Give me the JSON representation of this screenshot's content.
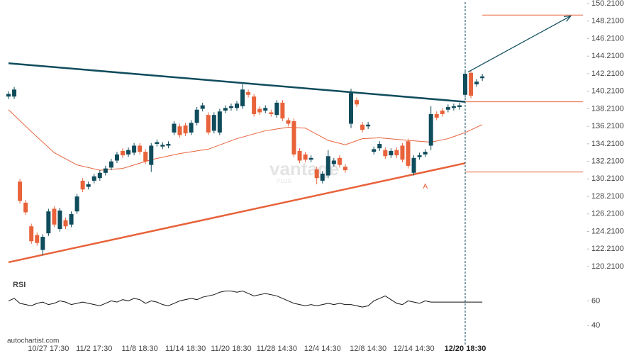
{
  "chart_data": {
    "type": "candlestick",
    "categories": [
      null,
      null,
      null,
      null,
      null,
      null,
      null,
      "10/27 17:30",
      null,
      null,
      null,
      null,
      null,
      null,
      null,
      "11/2 17:30",
      null,
      null,
      null,
      null,
      null,
      null,
      null,
      "11/8 18:30",
      null,
      null,
      null,
      null,
      null,
      null,
      null,
      "11/14 18:30",
      null,
      null,
      null,
      null,
      null,
      null,
      null,
      "11/20 18:30",
      null,
      null,
      null,
      null,
      null,
      null,
      null,
      "11/28 14:30",
      null,
      null,
      null,
      null,
      null,
      null,
      null,
      "12/4 14:30",
      null,
      null,
      null,
      null,
      null,
      null,
      null,
      "12/8 14:30",
      null,
      null,
      null,
      null,
      null,
      null,
      null,
      "12/14 14:30",
      null,
      null,
      null,
      null,
      null,
      null,
      null,
      null,
      "12/20 18:30",
      null,
      null,
      null
    ],
    "open": [
      139.6,
      139.6,
      129.9,
      127.5,
      124.8,
      123.8,
      122.1,
      124.0,
      126.8,
      124.5,
      125.5,
      125.0,
      126.5,
      130.0,
      129.3,
      130.0,
      130.3,
      130.9,
      131.5,
      132.3,
      133.4,
      133.0,
      133.2,
      134.0,
      133.3,
      131.8,
      134.2,
      133.9,
      134.0,
      135.5,
      136.2,
      136.3,
      135.5,
      136.6,
      138.2,
      137.5,
      135.7,
      135.5,
      138.0,
      138.3,
      138.3,
      138.5,
      140.1,
      139.6,
      138.2,
      138.0,
      137.8,
      137.5,
      138.9,
      136.9,
      136.8,
      133.4,
      133.0,
      132.4,
      131.3,
      130.0,
      130.6,
      131.9,
      132.6,
      131.6,
      136.5,
      139.2,
      136.4,
      136.2,
      133.3,
      133.7,
      133.5,
      132.9,
      133.5,
      134.0,
      134.5,
      130.9,
      132.7,
      133.0,
      134.0,
      137.6,
      138.0,
      138.1,
      138.3,
      138.4,
      139.8,
      142.3,
      141.0,
      141.7
    ],
    "high": [
      140.2,
      140.7,
      130.2,
      127.8,
      125.1,
      124.1,
      123.9,
      126.8,
      127.1,
      126.9,
      125.8,
      126.5,
      128.5,
      130.3,
      129.9,
      130.8,
      131.2,
      131.7,
      132.5,
      133.3,
      133.7,
      133.8,
      134.3,
      134.3,
      133.6,
      134.3,
      134.7,
      134.4,
      134.5,
      136.8,
      136.5,
      136.6,
      136.9,
      138.4,
      138.9,
      137.8,
      137.8,
      138.2,
      138.6,
      138.8,
      139.1,
      141.0,
      140.4,
      139.9,
      138.5,
      138.6,
      138.1,
      139.2,
      139.2,
      137.2,
      137.1,
      133.7,
      133.3,
      132.9,
      131.6,
      131.1,
      133.5,
      132.6,
      132.9,
      131.9,
      140.5,
      139.5,
      136.7,
      136.7,
      133.9,
      134.5,
      133.8,
      133.7,
      133.8,
      134.3,
      134.8,
      132.9,
      133.2,
      133.6,
      138.5,
      137.9,
      138.3,
      138.7,
      138.8,
      138.9,
      142.5,
      142.6,
      141.6,
      142.2
    ],
    "low": [
      139.3,
      139.3,
      127.4,
      126.1,
      122.8,
      122.6,
      121.5,
      123.7,
      124.7,
      124.2,
      124.5,
      124.7,
      126.2,
      128.7,
      129.0,
      129.7,
      130.0,
      130.6,
      131.2,
      132.0,
      132.6,
      132.7,
      132.9,
      133.0,
      131.9,
      131.0,
      133.9,
      133.6,
      133.7,
      135.2,
      134.9,
      135.1,
      135.2,
      136.3,
      137.9,
      135.2,
      135.4,
      135.2,
      137.7,
      138.0,
      138.0,
      138.2,
      139.5,
      137.3,
      137.5,
      137.7,
      137.3,
      137.2,
      136.8,
      136.2,
      132.7,
      132.0,
      132.1,
      132.1,
      129.6,
      129.7,
      130.3,
      131.6,
      131.5,
      130.9,
      136.0,
      138.4,
      135.5,
      135.9,
      133.0,
      133.4,
      132.5,
      132.6,
      132.6,
      132.1,
      131.4,
      130.6,
      132.4,
      132.7,
      133.5,
      136.9,
      137.3,
      137.8,
      138.0,
      138.1,
      139.5,
      139.4,
      140.7,
      141.4
    ],
    "close": [
      139.9,
      140.4,
      127.7,
      126.4,
      123.1,
      122.9,
      123.6,
      126.5,
      125.0,
      126.6,
      124.8,
      126.2,
      128.2,
      129.0,
      129.6,
      130.5,
      130.9,
      131.4,
      132.2,
      133.0,
      132.9,
      133.5,
      134.0,
      133.3,
      132.2,
      134.0,
      134.4,
      134.1,
      134.2,
      136.5,
      135.2,
      135.4,
      136.6,
      138.1,
      138.6,
      135.5,
      137.5,
      137.9,
      138.3,
      138.5,
      138.8,
      140.4,
      139.8,
      137.6,
      137.8,
      138.3,
      137.6,
      138.9,
      137.1,
      136.5,
      133.0,
      132.3,
      132.4,
      132.6,
      130.3,
      130.8,
      132.8,
      132.3,
      131.8,
      131.2,
      140.0,
      138.7,
      135.8,
      136.4,
      133.6,
      134.2,
      132.8,
      133.4,
      132.9,
      132.4,
      131.7,
      132.6,
      132.9,
      133.3,
      137.6,
      137.2,
      137.6,
      138.4,
      138.5,
      138.6,
      142.2,
      139.7,
      141.3,
      141.9
    ],
    "up_color": "#0f4c5c",
    "down_color": "#e8623a",
    "ylim": [
      120.21,
      150.21
    ],
    "yticks": [
      {
        "value": 120.21,
        "label": "120.2100"
      },
      {
        "value": 122.21,
        "label": "122.2100"
      },
      {
        "value": 124.21,
        "label": "124.2100"
      },
      {
        "value": 126.21,
        "label": "126.2100"
      },
      {
        "value": 128.21,
        "label": "128.2100"
      },
      {
        "value": 130.21,
        "label": "130.2100"
      },
      {
        "value": 132.21,
        "label": "132.2100"
      },
      {
        "value": 134.21,
        "label": "134.2100"
      },
      {
        "value": 136.21,
        "label": "136.2100"
      },
      {
        "value": 138.21,
        "label": "138.2100"
      },
      {
        "value": 140.21,
        "label": "140.2100"
      },
      {
        "value": 142.21,
        "label": "142.2100"
      },
      {
        "value": 144.21,
        "label": "144.2100"
      },
      {
        "value": 146.21,
        "label": "146.2100"
      },
      {
        "value": 148.21,
        "label": "148.2100"
      },
      {
        "value": 150.21,
        "label": "150.2100"
      }
    ],
    "current_index": 80,
    "trendlines": [
      {
        "x": [
          0,
          80
        ],
        "values": [
          143.4,
          139.0
        ],
        "color": "#0f4c5c"
      },
      {
        "x": [
          0,
          80
        ],
        "values": [
          120.7,
          132.0
        ],
        "color": "#e8623a"
      }
    ],
    "levels": [
      {
        "from": 83,
        "value": 148.9,
        "color": "#e8623a"
      },
      {
        "from": 80,
        "value": 139.0,
        "color": "#e8623a"
      },
      {
        "from": 80,
        "value": 131.0,
        "color": "#e8623a"
      }
    ],
    "forecast": {
      "x": [
        80.5,
        98.5
      ],
      "values": [
        142.4,
        148.8
      ],
      "color": "#0f4c5c"
    },
    "ma": {
      "color": "#e8623a",
      "x": [
        0,
        4,
        8,
        12,
        16,
        20,
        25,
        30,
        35,
        40,
        45,
        49,
        52,
        56,
        59,
        62,
        65,
        70,
        74,
        77,
        80,
        83
      ],
      "values": [
        138.1,
        135.6,
        133.2,
        131.8,
        131.2,
        131.4,
        132.4,
        133.1,
        133.6,
        134.8,
        135.7,
        136.1,
        136.0,
        134.6,
        134.1,
        134.8,
        134.9,
        134.6,
        134.4,
        134.8,
        135.5,
        136.4
      ]
    },
    "annotations": [
      {
        "text": "A",
        "x": 73,
        "value": 130.6,
        "color": "#e8623a"
      }
    ],
    "rsi": {
      "label": "RSI",
      "ylim": [
        31,
        74
      ],
      "yticks": [
        60,
        40
      ],
      "values": [
        60,
        62,
        58,
        57,
        56,
        58,
        59,
        57,
        58,
        60,
        59,
        57,
        58,
        59,
        58,
        57,
        56,
        58,
        60,
        59,
        61,
        60,
        62,
        61,
        58,
        60,
        59,
        57,
        56,
        58,
        60,
        61,
        62,
        61,
        63,
        64,
        65,
        67,
        68,
        68,
        67,
        68,
        66,
        64,
        65,
        66,
        65,
        64,
        62,
        60,
        58,
        57,
        56,
        57,
        56,
        57,
        58,
        57,
        58,
        57,
        57,
        56,
        55,
        56,
        60,
        62,
        64,
        61,
        58,
        57,
        60,
        59,
        58,
        60,
        59,
        59,
        59,
        59,
        59,
        59,
        59,
        59,
        59,
        59
      ]
    },
    "watermark": {
      "text": "vantage",
      "sub": "PLUS"
    },
    "source": "autochartist.com"
  }
}
